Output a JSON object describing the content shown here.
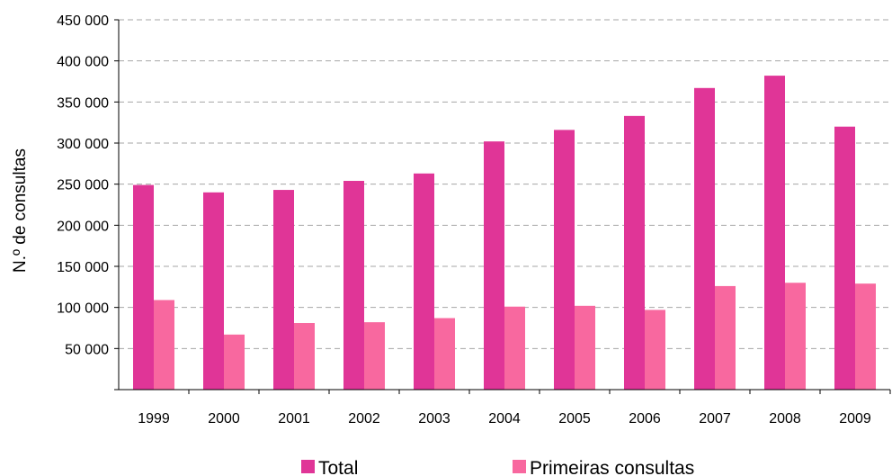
{
  "chart_data": {
    "type": "bar",
    "title": "",
    "xlabel": "",
    "ylabel": "N.º de consultas",
    "ylim": [
      0,
      450000
    ],
    "yticks": [
      50000,
      100000,
      150000,
      200000,
      250000,
      300000,
      350000,
      400000,
      450000
    ],
    "ytick_labels": [
      "50 000",
      "100 000",
      "150 000",
      "200 000",
      "250 000",
      "300 000",
      "350 000",
      "400 000",
      "450 000"
    ],
    "categories": [
      "1999",
      "2000",
      "2001",
      "2002",
      "2003",
      "2004",
      "2005",
      "2006",
      "2007",
      "2008",
      "2009"
    ],
    "grid": true,
    "legend_position": "bottom",
    "series": [
      {
        "name": "Total",
        "color": "#E03597",
        "values": [
          249000,
          240000,
          243000,
          254000,
          263000,
          302000,
          316000,
          333000,
          367000,
          382000,
          320000
        ]
      },
      {
        "name": "Primeiras consultas",
        "color": "#F8689F",
        "values": [
          109000,
          67000,
          81000,
          82000,
          87000,
          101000,
          102000,
          97000,
          126000,
          130000,
          129000
        ]
      }
    ]
  }
}
